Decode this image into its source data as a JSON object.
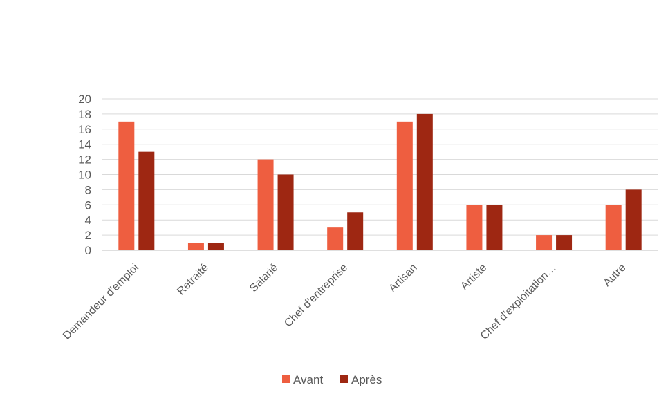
{
  "chart_data": {
    "type": "bar",
    "title": "",
    "xlabel": "",
    "ylabel": "",
    "ylim": [
      0,
      20
    ],
    "yticks": [
      0,
      2,
      4,
      6,
      8,
      10,
      12,
      14,
      16,
      18,
      20
    ],
    "grid": true,
    "legend_position": "bottom",
    "categories": [
      "Demandeur d'emploi",
      "Retraité",
      "Salarié",
      "Chef d'entreprise",
      "Artisan",
      "Artiste",
      "Chef d'exploitation…",
      "Autre"
    ],
    "series": [
      {
        "name": "Avant",
        "color": "#ee5e40",
        "values": [
          17,
          1,
          12,
          3,
          17,
          6,
          2,
          6
        ]
      },
      {
        "name": "Après",
        "color": "#9e2712",
        "values": [
          13,
          1,
          10,
          5,
          18,
          6,
          2,
          8
        ]
      }
    ]
  }
}
